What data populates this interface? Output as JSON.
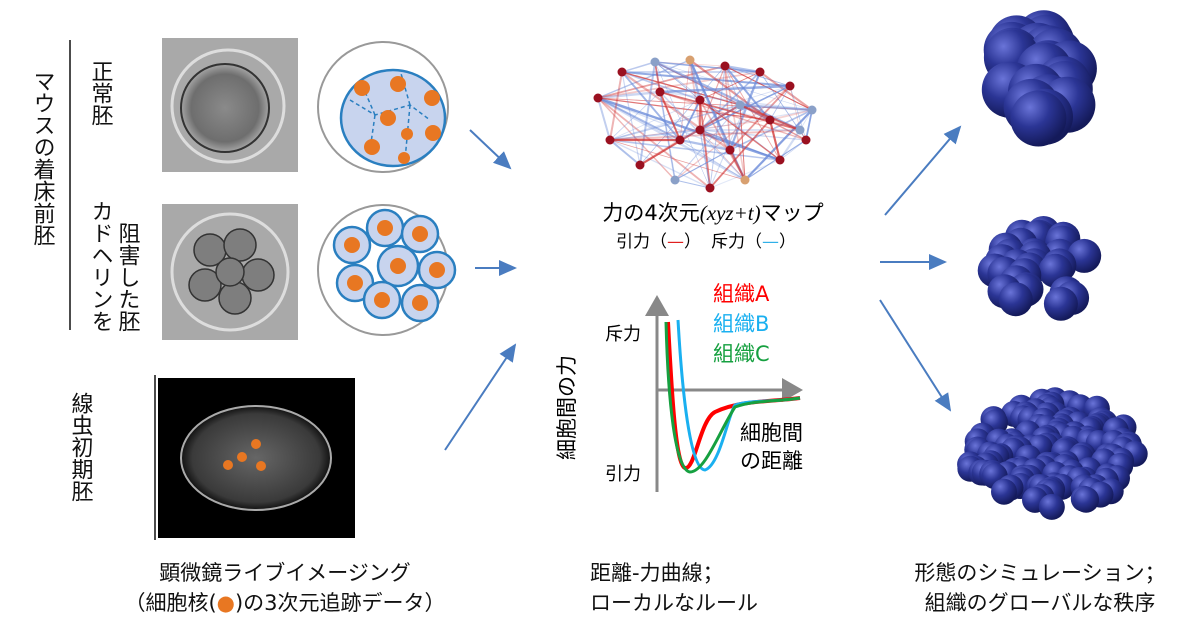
{
  "left": {
    "group_label": "マウスの着床前胚",
    "normal_label": "正常胚",
    "cadherin_label_line1": "カドヘリンを",
    "cadherin_label_line2": "阻害した胚",
    "worm_label": "線虫初期胚",
    "caption_line1": "顕微鏡ライブイメージング",
    "caption_line2_pre": "（細胞核(",
    "caption_line2_post": ")の3次元追跡データ）"
  },
  "middle": {
    "map_title_pre": "力の4次元",
    "map_title_var": "(xyz+t)",
    "map_title_post": "マップ",
    "legend_attract": "引力（",
    "legend_repel": "斥力（",
    "legend_close": "）",
    "y_axis_label": "細胞間の力",
    "y_top": "斥力",
    "y_bottom": "引力",
    "x_label_line1": "細胞間",
    "x_label_line2": "の距離",
    "series": [
      {
        "name": "組織A",
        "color": "#ff0000"
      },
      {
        "name": "組織B",
        "color": "#1ab0f0"
      },
      {
        "name": "組織C",
        "color": "#16a040"
      }
    ],
    "caption_line1": "距離-力曲線；",
    "caption_line2": "ローカルなルール"
  },
  "right": {
    "caption_line1": "形態のシミュレーション；",
    "caption_line2": "組織のグローバルな秩序"
  },
  "colors": {
    "nucleus": "#e87722",
    "cell_fill": "#c8d4ee",
    "cell_border": "#2a7fc0",
    "sphere": "#2b3595",
    "arrow": "#4a7cc0",
    "attract": "#e02020",
    "repel": "#30b0e8"
  }
}
